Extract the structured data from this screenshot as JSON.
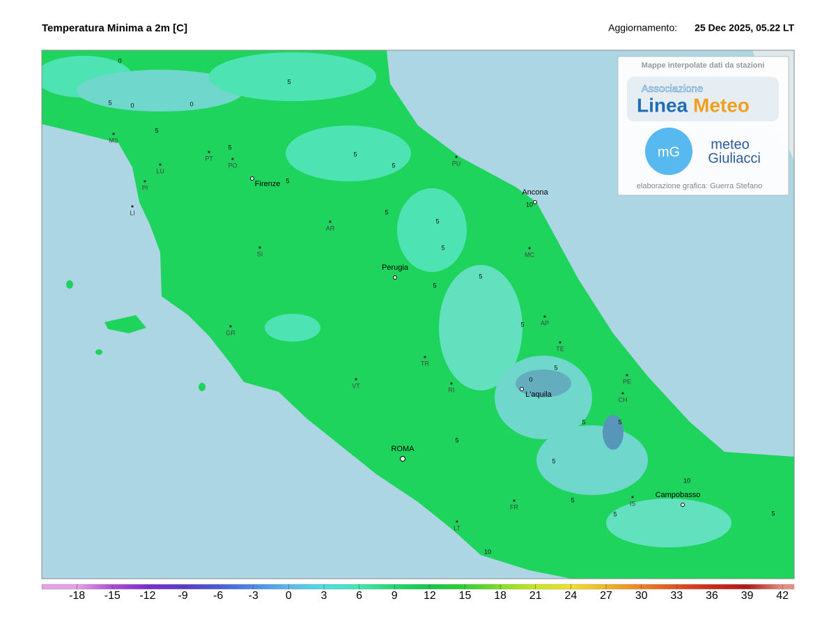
{
  "header": {
    "title": "Temperatura Minima a 2m [C]",
    "update_label": "Aggiornamento:",
    "update_time": "25 Dec 2025, 05.22 LT"
  },
  "map": {
    "places": [
      {
        "name": "MS",
        "kind": "town"
      },
      {
        "name": "LU",
        "kind": "town"
      },
      {
        "name": "PT",
        "kind": "town"
      },
      {
        "name": "PO",
        "kind": "town"
      },
      {
        "name": "PI",
        "kind": "town"
      },
      {
        "name": "LI",
        "kind": "town"
      },
      {
        "name": "Firenze",
        "kind": "city"
      },
      {
        "name": "AR",
        "kind": "town"
      },
      {
        "name": "SI",
        "kind": "town"
      },
      {
        "name": "Perugia",
        "kind": "city"
      },
      {
        "name": "GR",
        "kind": "town"
      },
      {
        "name": "TR",
        "kind": "town"
      },
      {
        "name": "VT",
        "kind": "town"
      },
      {
        "name": "RI",
        "kind": "town"
      },
      {
        "name": "ROMA",
        "kind": "capital"
      },
      {
        "name": "Ancona",
        "kind": "city"
      },
      {
        "name": "PU",
        "kind": "town"
      },
      {
        "name": "MC",
        "kind": "town"
      },
      {
        "name": "AP",
        "kind": "town"
      },
      {
        "name": "TE",
        "kind": "town"
      },
      {
        "name": "PE",
        "kind": "town"
      },
      {
        "name": "CH",
        "kind": "town"
      },
      {
        "name": "L'aquila",
        "kind": "city"
      },
      {
        "name": "IS",
        "kind": "town"
      },
      {
        "name": "Campobasso",
        "kind": "city"
      },
      {
        "name": "FR",
        "kind": "town"
      },
      {
        "name": "LT",
        "kind": "town"
      }
    ],
    "contour_labels": [
      0,
      0,
      0,
      5,
      5,
      5,
      5,
      5,
      5,
      5,
      5,
      5,
      10,
      5,
      5,
      5,
      5,
      0,
      5,
      5,
      5,
      10,
      5,
      5,
      5,
      5,
      10,
      5
    ]
  },
  "logo": {
    "caption": "Mappe interpolate dati da stazioni",
    "assoc": "Associazione",
    "brand_a": "Linea",
    "brand_b": "Meteo",
    "mg": "mG",
    "meteo": "meteo",
    "giuliacci": "Giuliacci",
    "credit": "elaborazione grafica: Guerra Stefano"
  },
  "colorbar": {
    "lim": [
      -21,
      43
    ],
    "ticks": [
      -18,
      -15,
      -12,
      -9,
      -6,
      -3,
      0,
      3,
      6,
      9,
      12,
      15,
      18,
      21,
      24,
      27,
      30,
      33,
      36,
      39,
      42
    ],
    "colors": [
      "#e6a0e6",
      "#b04ad8",
      "#7a2bd0",
      "#5a3ac8",
      "#4a5ad8",
      "#4a8ae8",
      "#5ab8f0",
      "#4ae0e0",
      "#3ee8b0",
      "#20d870",
      "#12c84a",
      "#30d030",
      "#80e020",
      "#c8e818",
      "#f0e020",
      "#f0b820",
      "#f08020",
      "#e05020",
      "#d02818",
      "#b01818",
      "#e89080"
    ]
  }
}
